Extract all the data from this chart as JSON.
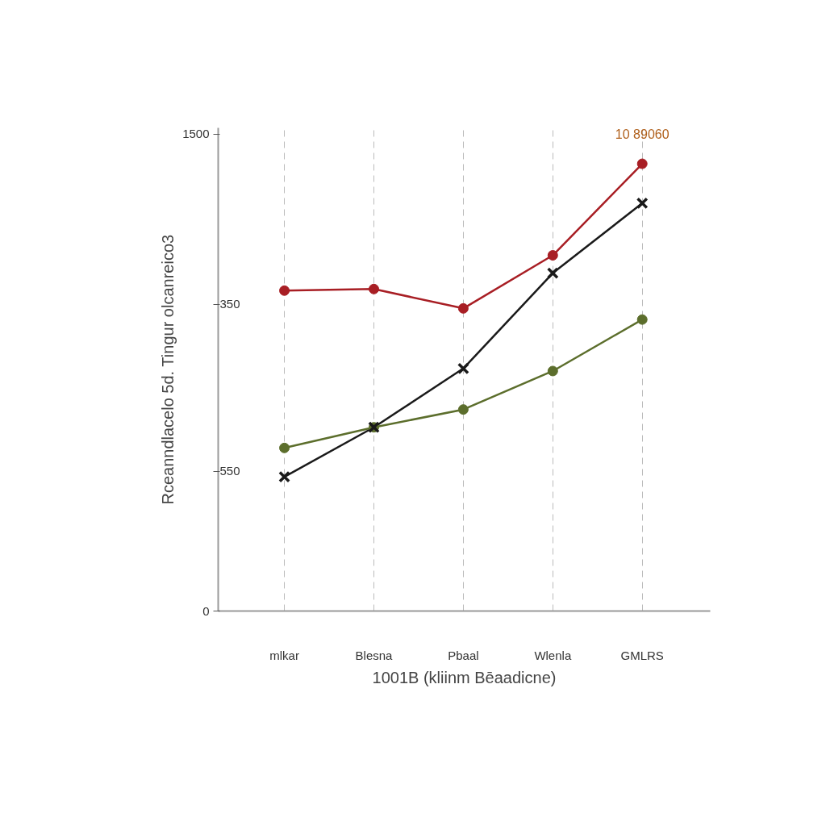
{
  "chart_data": {
    "type": "line",
    "ylabel": "Rceanndlacelo 5d. Tingur olcanreico3",
    "xlabel": "1001B (kliinm Bēaadicne)",
    "annotations": [
      "10 89060",
      "550",
      "350"
    ],
    "categories": [
      "mlkar",
      "Blesna",
      "Pbaal",
      "Wlenla",
      "GMLRS"
    ],
    "ylim": [
      0,
      1520
    ],
    "yticks": [
      0,
      {
        "value": 440,
        "label": null
      },
      {
        "value": 965,
        "label": null
      },
      1500
    ],
    "grid": "x",
    "series": [
      {
        "color": "#a81e24",
        "marker": "circle",
        "values": [
          1008,
          1013,
          952,
          1119,
          1407
        ]
      },
      {
        "color": "#1a1a1a",
        "marker": "cross",
        "values": [
          422,
          578,
          763,
          1063,
          1283
        ]
      },
      {
        "color": "#5c6e2c",
        "marker": "circle",
        "values": [
          513,
          578,
          634,
          755,
          917
        ]
      }
    ]
  }
}
